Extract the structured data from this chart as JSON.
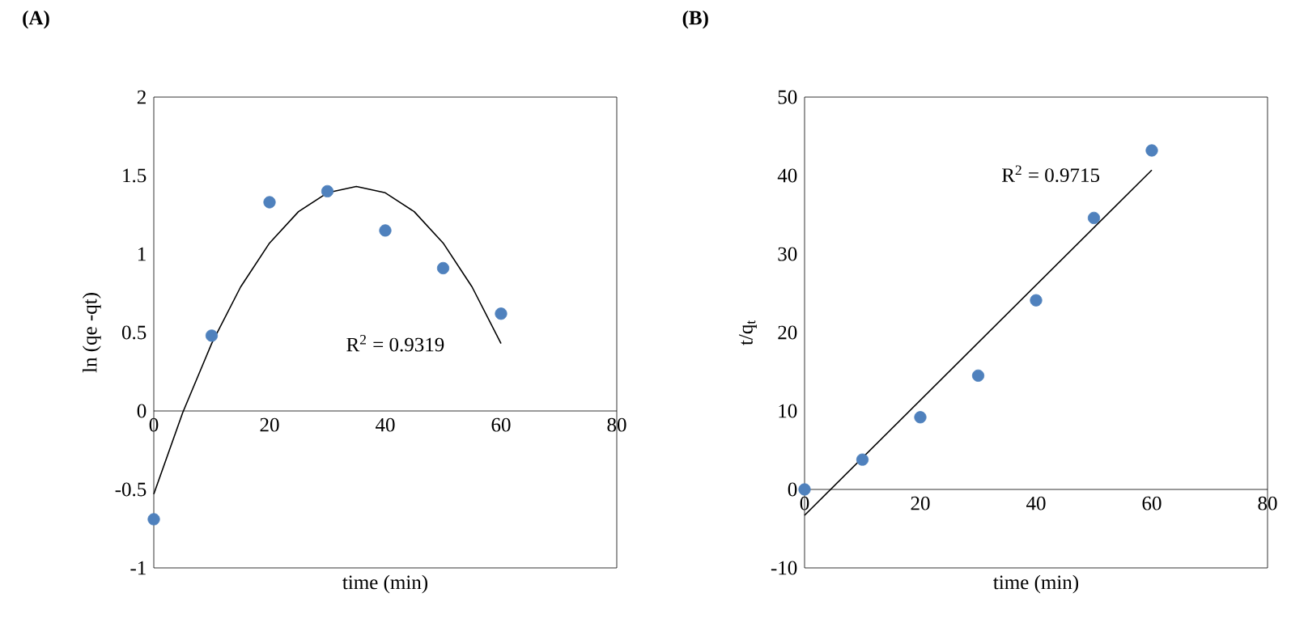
{
  "chart_data": [
    {
      "type": "scatter",
      "title": "(A)",
      "xlabel": "time (min)",
      "ylabel": "ln (qe -qt)",
      "x": [
        0,
        10,
        20,
        30,
        40,
        50,
        60
      ],
      "xlim": [
        0,
        80
      ],
      "xticks": [
        0,
        20,
        40,
        60,
        80
      ],
      "ylim": [
        -1,
        2
      ],
      "yticks": [
        -1,
        -0.5,
        0,
        0.5,
        1,
        1.5,
        2
      ],
      "series": [
        {
          "color": "#4f81bd",
          "marker": "circle",
          "values": [
            -0.69,
            0.48,
            1.33,
            1.4,
            1.15,
            0.91,
            0.62
          ]
        },
        {
          "type": "line",
          "color": "#000000",
          "marker": "none",
          "x": [
            0,
            5,
            10,
            15,
            20,
            25,
            30,
            35,
            40,
            45,
            50,
            55,
            60
          ],
          "values": [
            -0.53,
            -0.01,
            0.43,
            0.79,
            1.07,
            1.27,
            1.39,
            1.43,
            1.39,
            1.27,
            1.07,
            0.79,
            0.43
          ]
        }
      ],
      "annotations": [
        "R$^{2}$ = 0.9319"
      ]
    },
    {
      "type": "scatter",
      "title": "(B)",
      "xlabel": "time (min)",
      "ylabel": "t/q$_{t}$",
      "x": [
        0,
        10,
        20,
        30,
        40,
        50,
        60
      ],
      "xlim": [
        0,
        80
      ],
      "xticks": [
        0,
        20,
        40,
        60,
        80
      ],
      "ylim": [
        -10,
        50
      ],
      "yticks": [
        -10,
        0,
        10,
        20,
        30,
        40,
        50
      ],
      "series": [
        {
          "color": "#4f81bd",
          "marker": "circle",
          "values": [
            0,
            3.8,
            9.2,
            14.5,
            24.1,
            34.6,
            43.2
          ]
        },
        {
          "type": "line",
          "color": "#000000",
          "marker": "none",
          "x": [
            0,
            60
          ],
          "values": [
            -3.3,
            40.7
          ]
        }
      ],
      "annotations": [
        "R$^{2}$ = 0.9715"
      ]
    }
  ]
}
